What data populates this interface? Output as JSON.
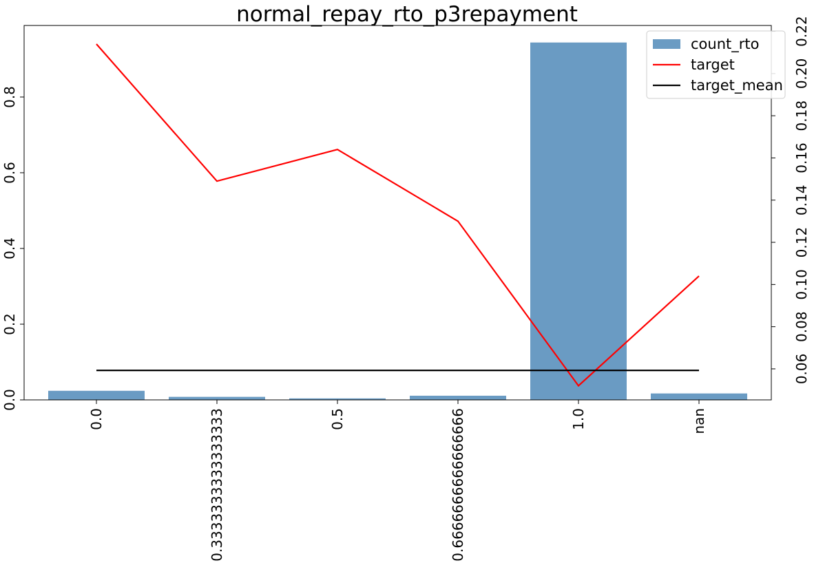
{
  "chart_data": {
    "type": "bar",
    "title": "normal_repay_rto_p3repayment",
    "xlabel": "",
    "ylabel": "",
    "categories": [
      "0.0",
      "0.3333333333333333",
      "0.5",
      "0.6666666666666666",
      "1.0",
      "nan"
    ],
    "series": [
      {
        "name": "count_rto",
        "type": "bar",
        "axis": "left",
        "color": "#6a9bc3",
        "values": [
          0.024,
          0.008,
          0.004,
          0.011,
          0.944,
          0.017
        ]
      },
      {
        "name": "target",
        "type": "line",
        "axis": "right",
        "color": "#ff0000",
        "values": [
          0.214,
          0.149,
          0.164,
          0.13,
          0.052,
          0.104
        ]
      },
      {
        "name": "target_mean",
        "type": "line",
        "axis": "right",
        "color": "#000000",
        "values": [
          0.0593,
          0.0593,
          0.0593,
          0.0593,
          0.0593,
          0.0593
        ]
      }
    ],
    "y_left": {
      "lim": [
        0,
        0.989
      ],
      "ticks": [
        0.0,
        0.2,
        0.4,
        0.6,
        0.8
      ],
      "tick_labels": [
        "0.0",
        "0.2",
        "0.4",
        "0.6",
        "0.8"
      ]
    },
    "y_right": {
      "lim": [
        0.0453,
        0.2228
      ],
      "ticks": [
        0.06,
        0.08,
        0.1,
        0.12,
        0.14,
        0.16,
        0.18,
        0.2,
        0.22
      ],
      "tick_labels": [
        "0.06",
        "0.08",
        "0.10",
        "0.12",
        "0.14",
        "0.16",
        "0.18",
        "0.20",
        "0.22"
      ]
    },
    "legend": {
      "position": "top-right",
      "entries": [
        "count_rto",
        "target",
        "target_mean"
      ]
    },
    "grid": false
  }
}
